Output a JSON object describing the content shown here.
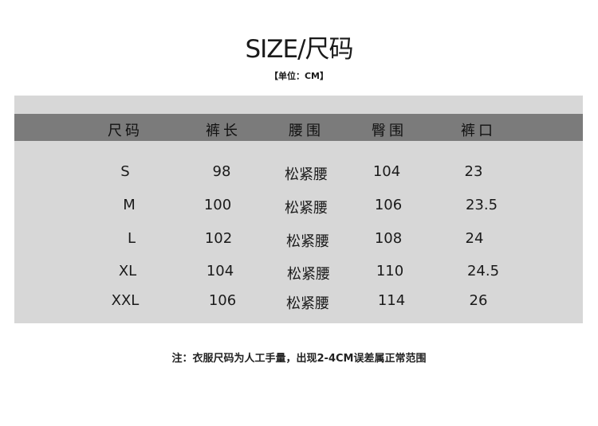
{
  "title": "SIZE/尺码",
  "unit": "【单位：CM】",
  "table": {
    "headers": [
      "尺码",
      "裤长",
      "腰围",
      "臀围",
      "裤口"
    ],
    "rows": [
      [
        "S",
        "98",
        "松紧腰",
        "104",
        "23"
      ],
      [
        "M",
        "100",
        "松紧腰",
        "106",
        "23.5"
      ],
      [
        "L",
        "102",
        "松紧腰",
        "108",
        "24"
      ],
      [
        "XL",
        "104",
        "松紧腰",
        "110",
        "24.5"
      ],
      [
        "XXL",
        "106",
        "松紧腰",
        "114",
        "26"
      ]
    ]
  },
  "note": "注：衣服尺码为人工手量，出现2-4CM误差属正常范围",
  "colors": {
    "panel": "#d7d7d7",
    "header_band": "#7b7b7b"
  }
}
